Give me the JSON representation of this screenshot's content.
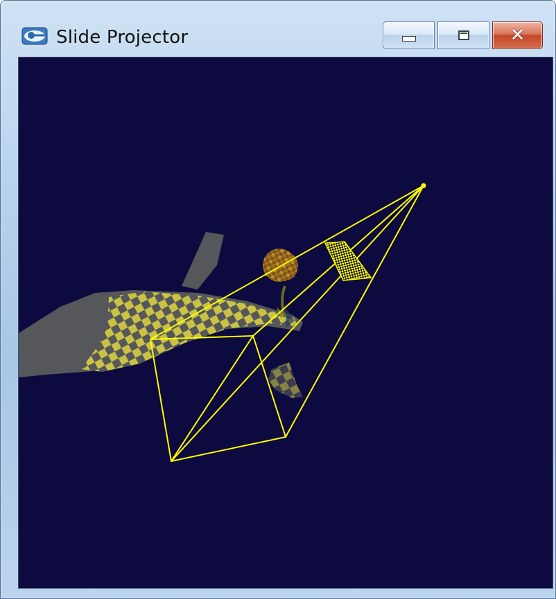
{
  "window": {
    "title": "Slide Projector",
    "icon": "app-eye-icon",
    "controls": {
      "minimize": "minimize-icon",
      "maximize": "maximize-icon",
      "close": "close-icon"
    }
  },
  "scene": {
    "background_color": "#0c0a3e",
    "wire_color": "#ffff00",
    "checker_color": "#c9c245",
    "model_color": "#55575a"
  }
}
